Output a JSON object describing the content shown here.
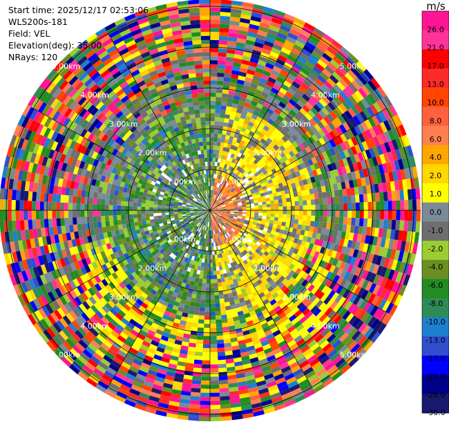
{
  "info": {
    "start_time": "Start time: 2025/12/17 02:53:06",
    "site": "WLS200s-181",
    "field": "Field: VEL",
    "elevation": "Elevation(deg): 35.00",
    "nrays": "NRays: 120"
  },
  "chart_data": {
    "type": "heatmap",
    "projection": "polar-ppi",
    "field": "VEL",
    "nrays": 120,
    "range_rings_km": [
      1,
      2,
      3,
      4,
      5
    ],
    "ring_label_text": [
      "1.00km",
      "2.00km",
      "3.00km",
      "4.00km",
      "5.00km"
    ],
    "colorbar": {
      "unit": "m/s",
      "ticks": [
        "26.0",
        "21.0",
        "17.0",
        "13.0",
        "10.0",
        "8.0",
        "6.0",
        "4.0",
        "2.0",
        "1.0",
        "0.0",
        "-1.0",
        "-2.0",
        "-4.0",
        "-6.0",
        "-8.0",
        "-10.0",
        "-13.0",
        "-17.0",
        "-21.0",
        "-26.0",
        "-30.0"
      ],
      "colors": [
        "#ff1493",
        "#ff3399",
        "#ff0000",
        "#ff2a2a",
        "#ff4500",
        "#ff6040",
        "#ff7f50",
        "#ffa500",
        "#ffd700",
        "#ffff00",
        "#7a8a99",
        "#6e6e6e",
        "#9acd32",
        "#6b8e23",
        "#228b22",
        "#2e8b57",
        "#1e7fcf",
        "#2f4fcf",
        "#0000ff",
        "#00008b",
        "#191970"
      ]
    }
  }
}
